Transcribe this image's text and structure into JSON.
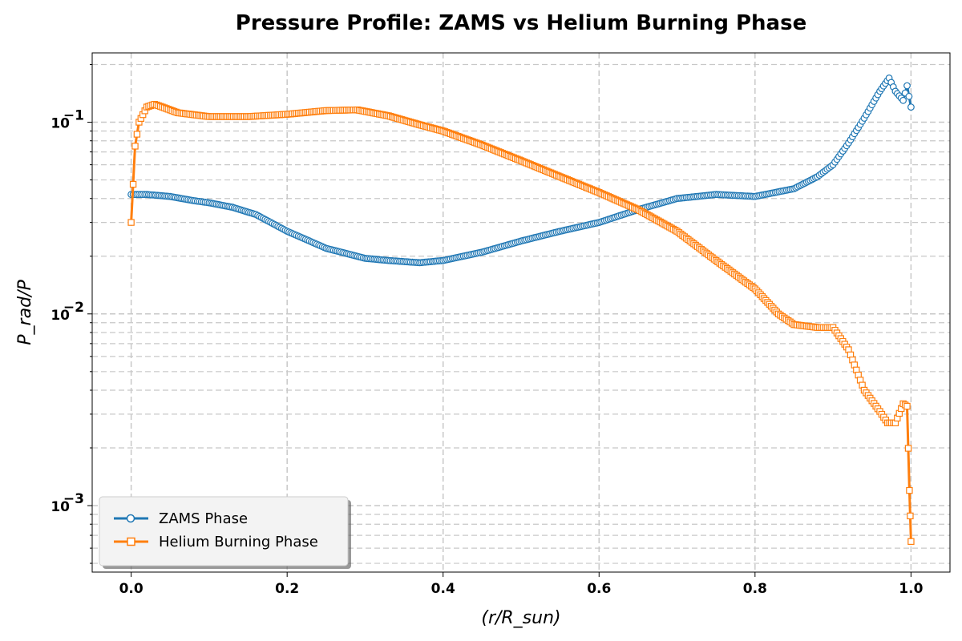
{
  "chart_data": {
    "type": "line",
    "title": "Pressure Profile: ZAMS vs Helium Burning Phase",
    "xlabel": "(r/R_sun)",
    "ylabel": "P_rad/P",
    "x_scale": "linear",
    "y_scale": "log",
    "xlim": [
      -0.05,
      1.05
    ],
    "ylim": [
      0.00045,
      0.23
    ],
    "x_ticks": [
      0.0,
      0.2,
      0.4,
      0.6,
      0.8,
      1.0
    ],
    "x_tick_labels": [
      "0.0",
      "0.2",
      "0.4",
      "0.6",
      "0.8",
      "1.0"
    ],
    "y_major_ticks": [
      0.001,
      0.01,
      0.1
    ],
    "y_tick_labels": [
      {
        "base": "10",
        "exp": "−3"
      },
      {
        "base": "10",
        "exp": "−2"
      },
      {
        "base": "10",
        "exp": "−1"
      }
    ],
    "grid": "both (major and minor), dashed",
    "legend_position": "lower-left",
    "series": [
      {
        "name": "ZAMS Phase",
        "color": "#1f77b4",
        "marker": "circle",
        "x": [
          0.0,
          0.02,
          0.05,
          0.08,
          0.1,
          0.13,
          0.16,
          0.2,
          0.25,
          0.3,
          0.33,
          0.37,
          0.4,
          0.45,
          0.5,
          0.55,
          0.6,
          0.65,
          0.7,
          0.75,
          0.8,
          0.85,
          0.88,
          0.9,
          0.92,
          0.94,
          0.96,
          0.972,
          0.98,
          0.99,
          0.995,
          1.0
        ],
        "y": [
          0.042,
          0.042,
          0.041,
          0.039,
          0.038,
          0.036,
          0.033,
          0.027,
          0.022,
          0.0195,
          0.019,
          0.0185,
          0.019,
          0.021,
          0.024,
          0.027,
          0.03,
          0.035,
          0.04,
          0.042,
          0.041,
          0.045,
          0.052,
          0.06,
          0.078,
          0.105,
          0.145,
          0.17,
          0.145,
          0.13,
          0.155,
          0.12
        ]
      },
      {
        "name": "Helium Burning Phase",
        "color": "#ff7f0e",
        "marker": "square",
        "x": [
          0.0,
          0.005,
          0.01,
          0.02,
          0.03,
          0.04,
          0.06,
          0.1,
          0.15,
          0.2,
          0.25,
          0.29,
          0.33,
          0.37,
          0.4,
          0.45,
          0.5,
          0.55,
          0.6,
          0.65,
          0.7,
          0.75,
          0.8,
          0.83,
          0.85,
          0.88,
          0.9,
          0.92,
          0.94,
          0.96,
          0.97,
          0.98,
          0.99,
          0.995,
          0.998,
          1.0
        ],
        "y": [
          0.03,
          0.075,
          0.1,
          0.12,
          0.124,
          0.12,
          0.112,
          0.107,
          0.107,
          0.11,
          0.115,
          0.116,
          0.108,
          0.097,
          0.09,
          0.076,
          0.063,
          0.052,
          0.043,
          0.035,
          0.027,
          0.019,
          0.0135,
          0.01,
          0.0088,
          0.0085,
          0.0085,
          0.0065,
          0.004,
          0.0031,
          0.0027,
          0.0027,
          0.0034,
          0.0033,
          0.0012,
          0.00065
        ]
      }
    ]
  }
}
